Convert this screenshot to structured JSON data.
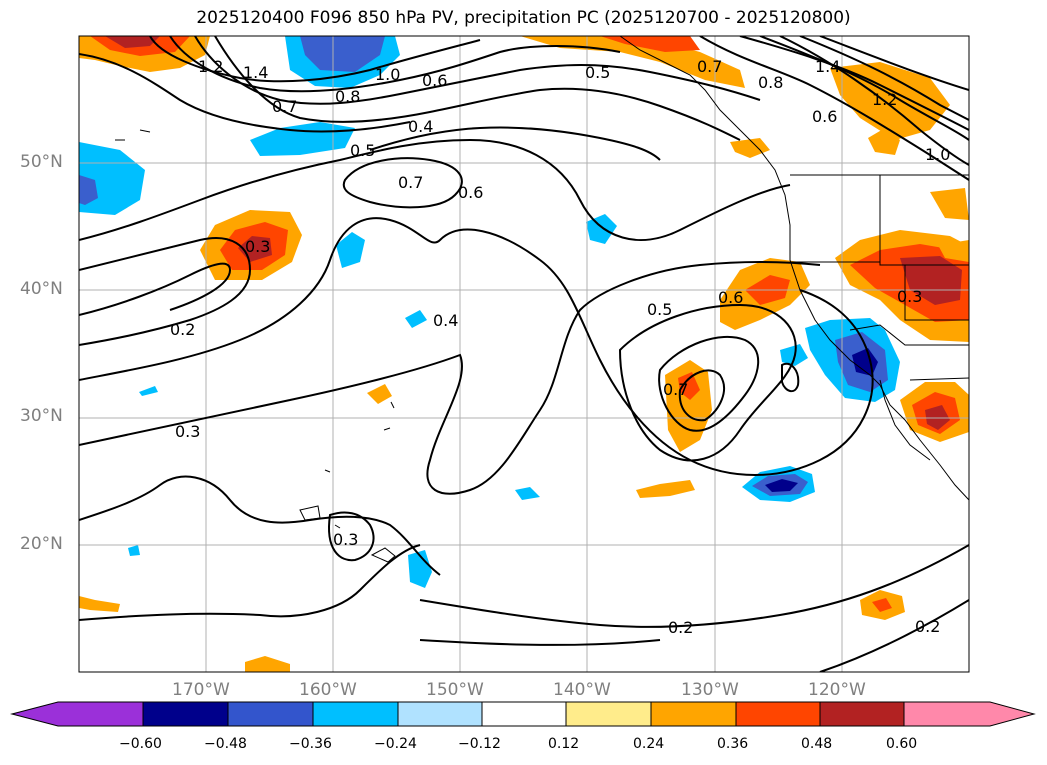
{
  "title": "2025120400 F096 850 hPa PV, precipitation PC (2025120700 - 2025120800)",
  "map": {
    "lon_range": [
      -180,
      -110
    ],
    "lat_range": [
      10,
      60
    ],
    "lat_labels": [
      "50°N",
      "40°N",
      "30°N",
      "20°N"
    ],
    "lat_values": [
      50,
      40,
      30,
      20
    ],
    "lon_labels": [
      "170°W",
      "160°W",
      "150°W",
      "140°W",
      "130°W",
      "120°W"
    ],
    "lon_values": [
      -170,
      -160,
      -150,
      -140,
      -130,
      -120
    ],
    "contour_labels": [
      {
        "text": "1.2"
      },
      {
        "text": "1.4"
      },
      {
        "text": "1.0"
      },
      {
        "text": "0.6"
      },
      {
        "text": "0.7"
      },
      {
        "text": "0.8"
      },
      {
        "text": "0.4"
      },
      {
        "text": "0.5"
      },
      {
        "text": "0.7"
      },
      {
        "text": "0.6"
      },
      {
        "text": "0.3"
      },
      {
        "text": "0.2"
      },
      {
        "text": "0.4"
      },
      {
        "text": "0.3"
      },
      {
        "text": "0.3"
      },
      {
        "text": "0.5"
      },
      {
        "text": "0.6"
      },
      {
        "text": "0.7"
      },
      {
        "text": "0.5"
      },
      {
        "text": "0.7"
      },
      {
        "text": "0.8"
      },
      {
        "text": "1.4"
      },
      {
        "text": "1.2"
      },
      {
        "text": "0.6"
      },
      {
        "text": "1.0"
      },
      {
        "text": "0.3"
      },
      {
        "text": "0.2"
      },
      {
        "text": "0.2"
      }
    ]
  },
  "colorbar": {
    "ticks": [
      "−0.60",
      "−0.48",
      "−0.36",
      "−0.24",
      "−0.12",
      "0.12",
      "0.24",
      "0.36",
      "0.48",
      "0.60"
    ],
    "colors": [
      "#9b30d9",
      "#00008b",
      "#3355cc",
      "#00bfff",
      "#b0e2ff",
      "#ffffff",
      "#ffec8b",
      "#ffa500",
      "#ff4500",
      "#b22222",
      "#ff88aa"
    ]
  },
  "colors": {
    "dark_blue": "#00008b",
    "blue": "#3a5fcd",
    "light_blue": "#00bfff",
    "orange": "#ffa500",
    "red": "#ff4500",
    "dark_red": "#b22222"
  }
}
